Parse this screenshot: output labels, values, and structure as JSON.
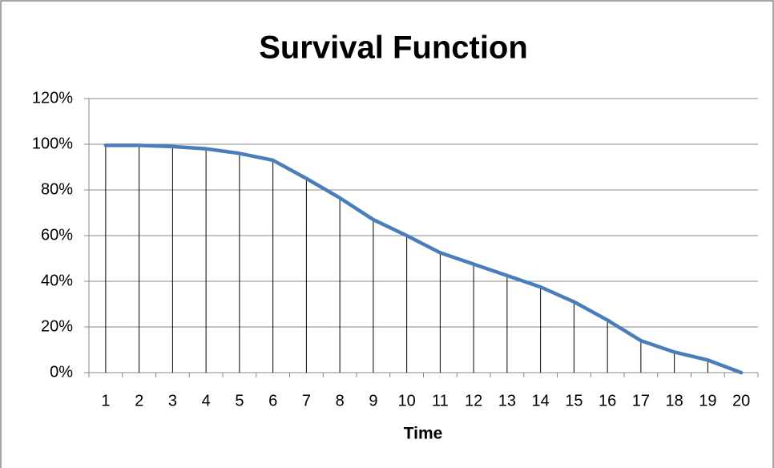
{
  "chart_data": {
    "type": "line",
    "title": "Survival Function",
    "x_label": "Time",
    "categories": [
      "1",
      "2",
      "3",
      "4",
      "5",
      "6",
      "7",
      "8",
      "9",
      "10",
      "11",
      "12",
      "13",
      "14",
      "15",
      "16",
      "17",
      "18",
      "19",
      "20"
    ],
    "values": [
      99.5,
      99.5,
      99,
      98,
      96,
      93,
      85,
      76.5,
      67,
      60,
      52.5,
      47.5,
      42.5,
      37.5,
      31,
      23,
      14,
      9,
      5.5,
      0
    ],
    "color": "#4a7ebb",
    "drop_lines": true,
    "grid": true,
    "ylim": [
      0,
      120
    ],
    "yticks": [
      {
        "value": 0,
        "label": "0%"
      },
      {
        "value": 20,
        "label": "20%"
      },
      {
        "value": 40,
        "label": "40%"
      },
      {
        "value": 60,
        "label": "60%"
      },
      {
        "value": 80,
        "label": "80%"
      },
      {
        "value": 100,
        "label": "100%"
      },
      {
        "value": 120,
        "label": "120%"
      }
    ]
  }
}
